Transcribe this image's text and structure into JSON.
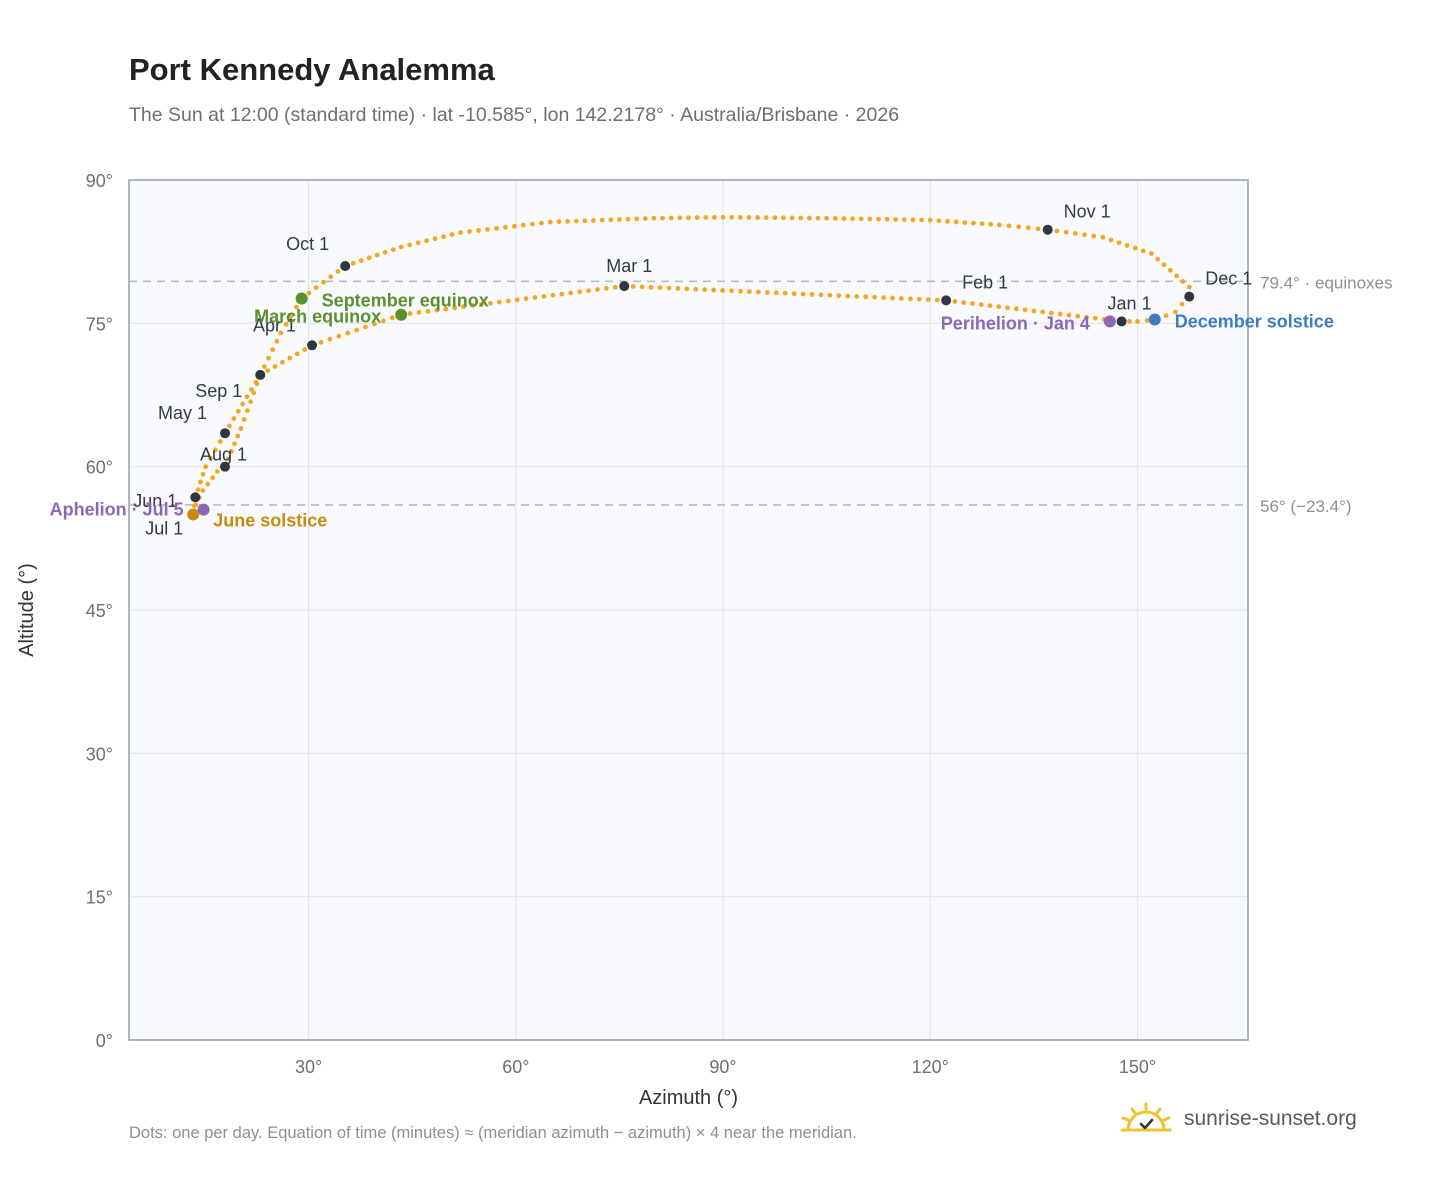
{
  "title": "Port Kennedy Analemma",
  "subtitle": "The Sun at 12:00 (standard time) · lat -10.585°, lon 142.2178° · Australia/Brisbane · 2026",
  "footnote": "Dots: one per day. Equation of time (minutes) ≈ (meridian azimuth − azimuth) × 4 near the meridian.",
  "brand": {
    "name": "sunrise-sunset.org",
    "icon": "sun-logo-icon"
  },
  "colors": {
    "curve": "#f5a623",
    "month_marker": "#2f3640",
    "equinox": "#5a8f2e",
    "june_solstice": "#c98a0b",
    "december_solstice": "#3d7cc0",
    "apsis": "#8e67b3",
    "reference_line": "#b8bcc2",
    "plot_bg": "#f8fafd",
    "grid": "#e3e7ec",
    "frame": "#9aa4b2"
  },
  "chart_data": {
    "type": "scatter",
    "xlabel": "Azimuth (°)",
    "ylabel": "Altitude (°)",
    "xlim": [
      4,
      166
    ],
    "ylim": [
      0,
      90
    ],
    "x_ticks": [
      {
        "value": 30,
        "label": "30°"
      },
      {
        "value": 60,
        "label": "60°"
      },
      {
        "value": 90,
        "label": "90°"
      },
      {
        "value": 120,
        "label": "120°"
      },
      {
        "value": 150,
        "label": "150°"
      }
    ],
    "y_ticks": [
      {
        "value": 0,
        "label": "0°"
      },
      {
        "value": 15,
        "label": "15°"
      },
      {
        "value": 30,
        "label": "30°"
      },
      {
        "value": 45,
        "label": "45°"
      },
      {
        "value": 60,
        "label": "60°"
      },
      {
        "value": 75,
        "label": "75°"
      },
      {
        "value": 90,
        "label": "90°"
      }
    ],
    "grid": true,
    "reference_lines": [
      {
        "altitude": 79.4,
        "label": "79.4° · equinoxes"
      },
      {
        "altitude": 56.0,
        "label": "56° (−23.4°)"
      }
    ],
    "path": [
      [
        147.7,
        75.2
      ],
      [
        122.3,
        77.4
      ],
      [
        75.7,
        78.9
      ],
      [
        43.4,
        75.9
      ],
      [
        30.5,
        72.7
      ],
      [
        23.0,
        69.6
      ],
      [
        17.9,
        63.5
      ],
      [
        15.1,
        60.0
      ],
      [
        13.6,
        56.8
      ],
      [
        13.3,
        55.0
      ],
      [
        13.7,
        56.0
      ],
      [
        14.7,
        57.5
      ],
      [
        16.8,
        59.5
      ],
      [
        17.9,
        60.0
      ],
      [
        20.2,
        64.0
      ],
      [
        23.0,
        69.6
      ],
      [
        26.0,
        74.0
      ],
      [
        29.0,
        77.6
      ],
      [
        35.3,
        81.0
      ],
      [
        43.4,
        83.0
      ],
      [
        52.0,
        84.5
      ],
      [
        65.0,
        85.6
      ],
      [
        80.0,
        86.0
      ],
      [
        90.0,
        86.1
      ],
      [
        105.0,
        86.0
      ],
      [
        120.0,
        85.8
      ],
      [
        130.0,
        85.3
      ],
      [
        137.0,
        84.8
      ],
      [
        145.0,
        84.0
      ],
      [
        152.0,
        82.3
      ],
      [
        157.5,
        78.8
      ],
      [
        157.4,
        77.8
      ],
      [
        155.5,
        76.2
      ],
      [
        152.8,
        75.4
      ],
      [
        150.0,
        75.2
      ],
      [
        147.7,
        75.2
      ]
    ],
    "month_markers": [
      {
        "label": "Jan 1",
        "x": 147.7,
        "y": 75.2
      },
      {
        "label": "Feb 1",
        "x": 122.3,
        "y": 77.4
      },
      {
        "label": "Mar 1",
        "x": 75.7,
        "y": 78.9
      },
      {
        "label": "Apr 1",
        "x": 30.5,
        "y": 72.7
      },
      {
        "label": "May 1",
        "x": 17.9,
        "y": 63.5
      },
      {
        "label": "Jun 1",
        "x": 13.6,
        "y": 56.8
      },
      {
        "label": "Jul 1",
        "x": 13.3,
        "y": 55.0
      },
      {
        "label": "Aug 1",
        "x": 17.9,
        "y": 60.0
      },
      {
        "label": "Sep 1",
        "x": 23.0,
        "y": 69.6
      },
      {
        "label": "Oct 1",
        "x": 35.3,
        "y": 81.0
      },
      {
        "label": "Nov 1",
        "x": 137.0,
        "y": 84.8
      },
      {
        "label": "Dec 1",
        "x": 157.5,
        "y": 77.8
      }
    ],
    "events": [
      {
        "label": "March equinox",
        "x": 43.4,
        "y": 75.9,
        "color_key": "equinox"
      },
      {
        "label": "September equinox",
        "x": 29.0,
        "y": 77.6,
        "color_key": "equinox"
      },
      {
        "label": "June solstice",
        "x": 13.3,
        "y": 55.0,
        "color_key": "june_solstice"
      },
      {
        "label": "December solstice",
        "x": 152.5,
        "y": 75.4,
        "color_key": "december_solstice"
      },
      {
        "label": "Perihelion · Jan 4",
        "x": 146.0,
        "y": 75.2,
        "color_key": "apsis"
      },
      {
        "label": "Aphelion · Jul 5",
        "x": 14.8,
        "y": 55.5,
        "color_key": "apsis"
      }
    ]
  }
}
